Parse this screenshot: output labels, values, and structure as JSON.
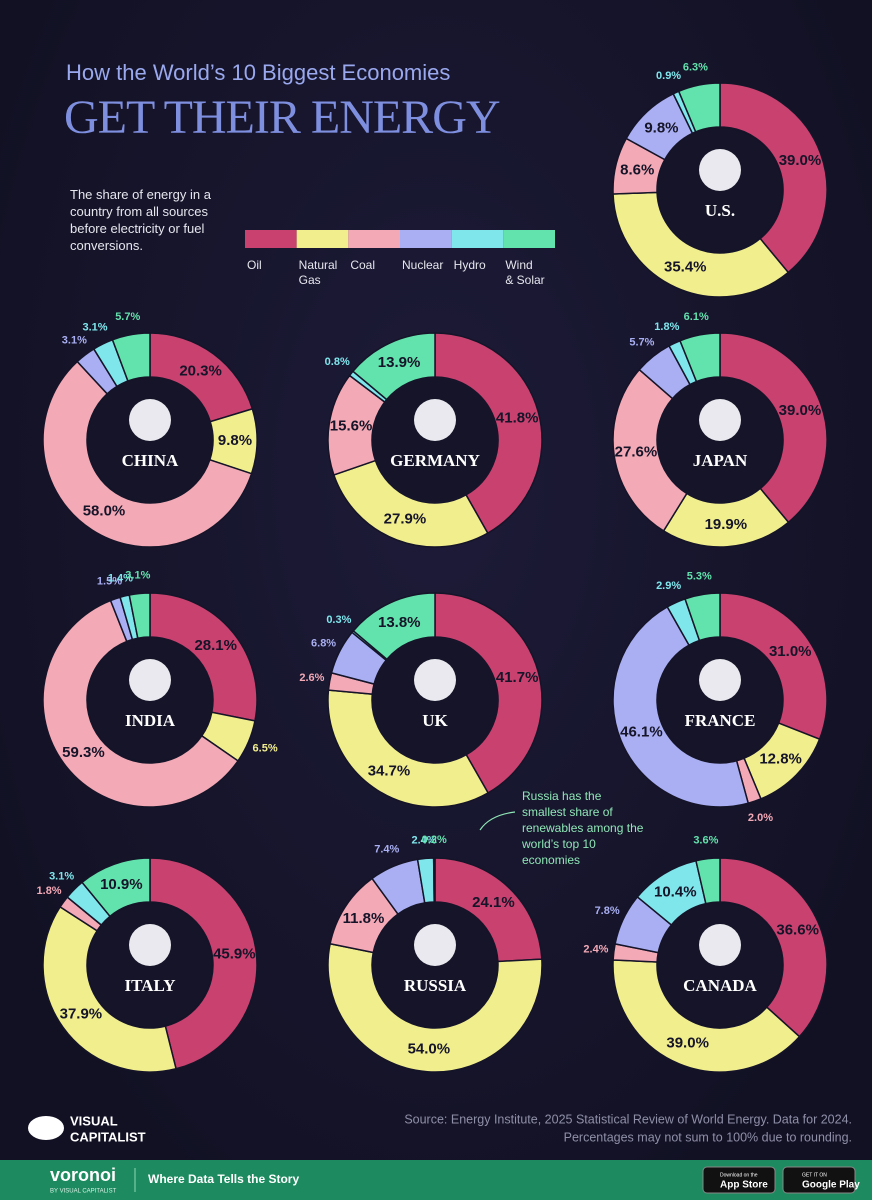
{
  "header": {
    "subtitle": "How the World’s 10 Biggest Economies",
    "title": "GET THEIR ENERGY",
    "description": "The share of energy in a country from all sources before electricity or fuel conversions."
  },
  "legend": {
    "items": [
      {
        "label": "Oil",
        "color": "#c8416f"
      },
      {
        "label": "Natural Gas",
        "color": "#f1ee8e"
      },
      {
        "label": "Coal",
        "color": "#f3a9b6"
      },
      {
        "label": "Nuclear",
        "color": "#a9aff2"
      },
      {
        "label": "Hydro",
        "color": "#7fe6ec"
      },
      {
        "label": "Wind & Solar",
        "color": "#62e2ac"
      }
    ]
  },
  "chart_data": [
    {
      "type": "donut",
      "title": "U.S.",
      "values": [
        39.0,
        35.4,
        8.6,
        9.8,
        0.9,
        6.3
      ],
      "value_labels": [
        "39.0%",
        "35.4%",
        "8.6%",
        "9.8%",
        "0.9%",
        "6.3%"
      ]
    },
    {
      "type": "donut",
      "title": "CHINA",
      "values": [
        20.3,
        9.8,
        58.0,
        3.1,
        3.1,
        5.7
      ],
      "value_labels": [
        "20.3%",
        "9.8%",
        "58.0%",
        "3.1%",
        "3.1%",
        "5.7%"
      ]
    },
    {
      "type": "donut",
      "title": "GERMANY",
      "values": [
        41.8,
        27.9,
        15.6,
        0,
        0.8,
        13.9
      ],
      "value_labels": [
        "41.8%",
        "27.9%",
        "15.6%",
        null,
        "0.8%",
        "13.9%"
      ]
    },
    {
      "type": "donut",
      "title": "JAPAN",
      "values": [
        39.0,
        19.9,
        27.6,
        5.7,
        1.8,
        6.1
      ],
      "value_labels": [
        "39.0%",
        "19.9%",
        "27.6%",
        "5.7%",
        "1.8%",
        "6.1%"
      ]
    },
    {
      "type": "donut",
      "title": "INDIA",
      "values": [
        28.1,
        6.5,
        59.3,
        1.5,
        1.4,
        3.1
      ],
      "value_labels": [
        "28.1%",
        "6.5%",
        "59.3%",
        "1.5%",
        "1.4%",
        "3.1%"
      ]
    },
    {
      "type": "donut",
      "title": "UK",
      "values": [
        41.7,
        34.7,
        2.6,
        6.8,
        0.3,
        13.8
      ],
      "value_labels": [
        "41.7%",
        "34.7%",
        "2.6%",
        "6.8%",
        "0.3%",
        "13.8%"
      ]
    },
    {
      "type": "donut",
      "title": "FRANCE",
      "values": [
        31.0,
        12.8,
        2.0,
        46.1,
        2.9,
        5.3
      ],
      "value_labels": [
        "31.0%",
        "12.8%",
        "2.0%",
        "46.1%",
        "2.9%",
        "5.3%"
      ]
    },
    {
      "type": "donut",
      "title": "ITALY",
      "values": [
        45.9,
        37.9,
        1.8,
        0,
        3.1,
        10.9
      ],
      "value_labels": [
        "45.9%",
        "37.9%",
        "1.8%",
        null,
        "3.1%",
        "10.9%"
      ]
    },
    {
      "type": "donut",
      "title": "RUSSIA",
      "values": [
        24.1,
        54.0,
        11.8,
        7.4,
        2.4,
        0.2
      ],
      "value_labels": [
        "24.1%",
        "54.0%",
        "11.8%",
        "7.4%",
        "2.4%",
        "0.2%"
      ]
    },
    {
      "type": "donut",
      "title": "CANADA",
      "values": [
        36.6,
        39.0,
        2.4,
        7.8,
        10.4,
        3.6
      ],
      "value_labels": [
        "36.6%",
        "39.0%",
        "2.4%",
        "7.8%",
        "10.4%",
        "3.6%"
      ]
    }
  ],
  "annotation": "Russia has the smallest share of renewables among the world’s top 10 economies",
  "source": {
    "line1": "Source: Energy Institute, 2025 Statistical Review of World Energy. Data for 2024.",
    "line2": "Percentages may not sum to 100% due to rounding."
  },
  "brand": {
    "line1": "VISUAL",
    "line2": "CAPITALIST"
  },
  "footer": {
    "logo": "voronoi",
    "logo_sub": "BY VISUAL CAPITALIST",
    "tagline": "Where Data Tells the Story",
    "app_store_small": "Download on the",
    "app_store": "App Store",
    "google_small": "GET IT ON",
    "google": "Google Play"
  }
}
